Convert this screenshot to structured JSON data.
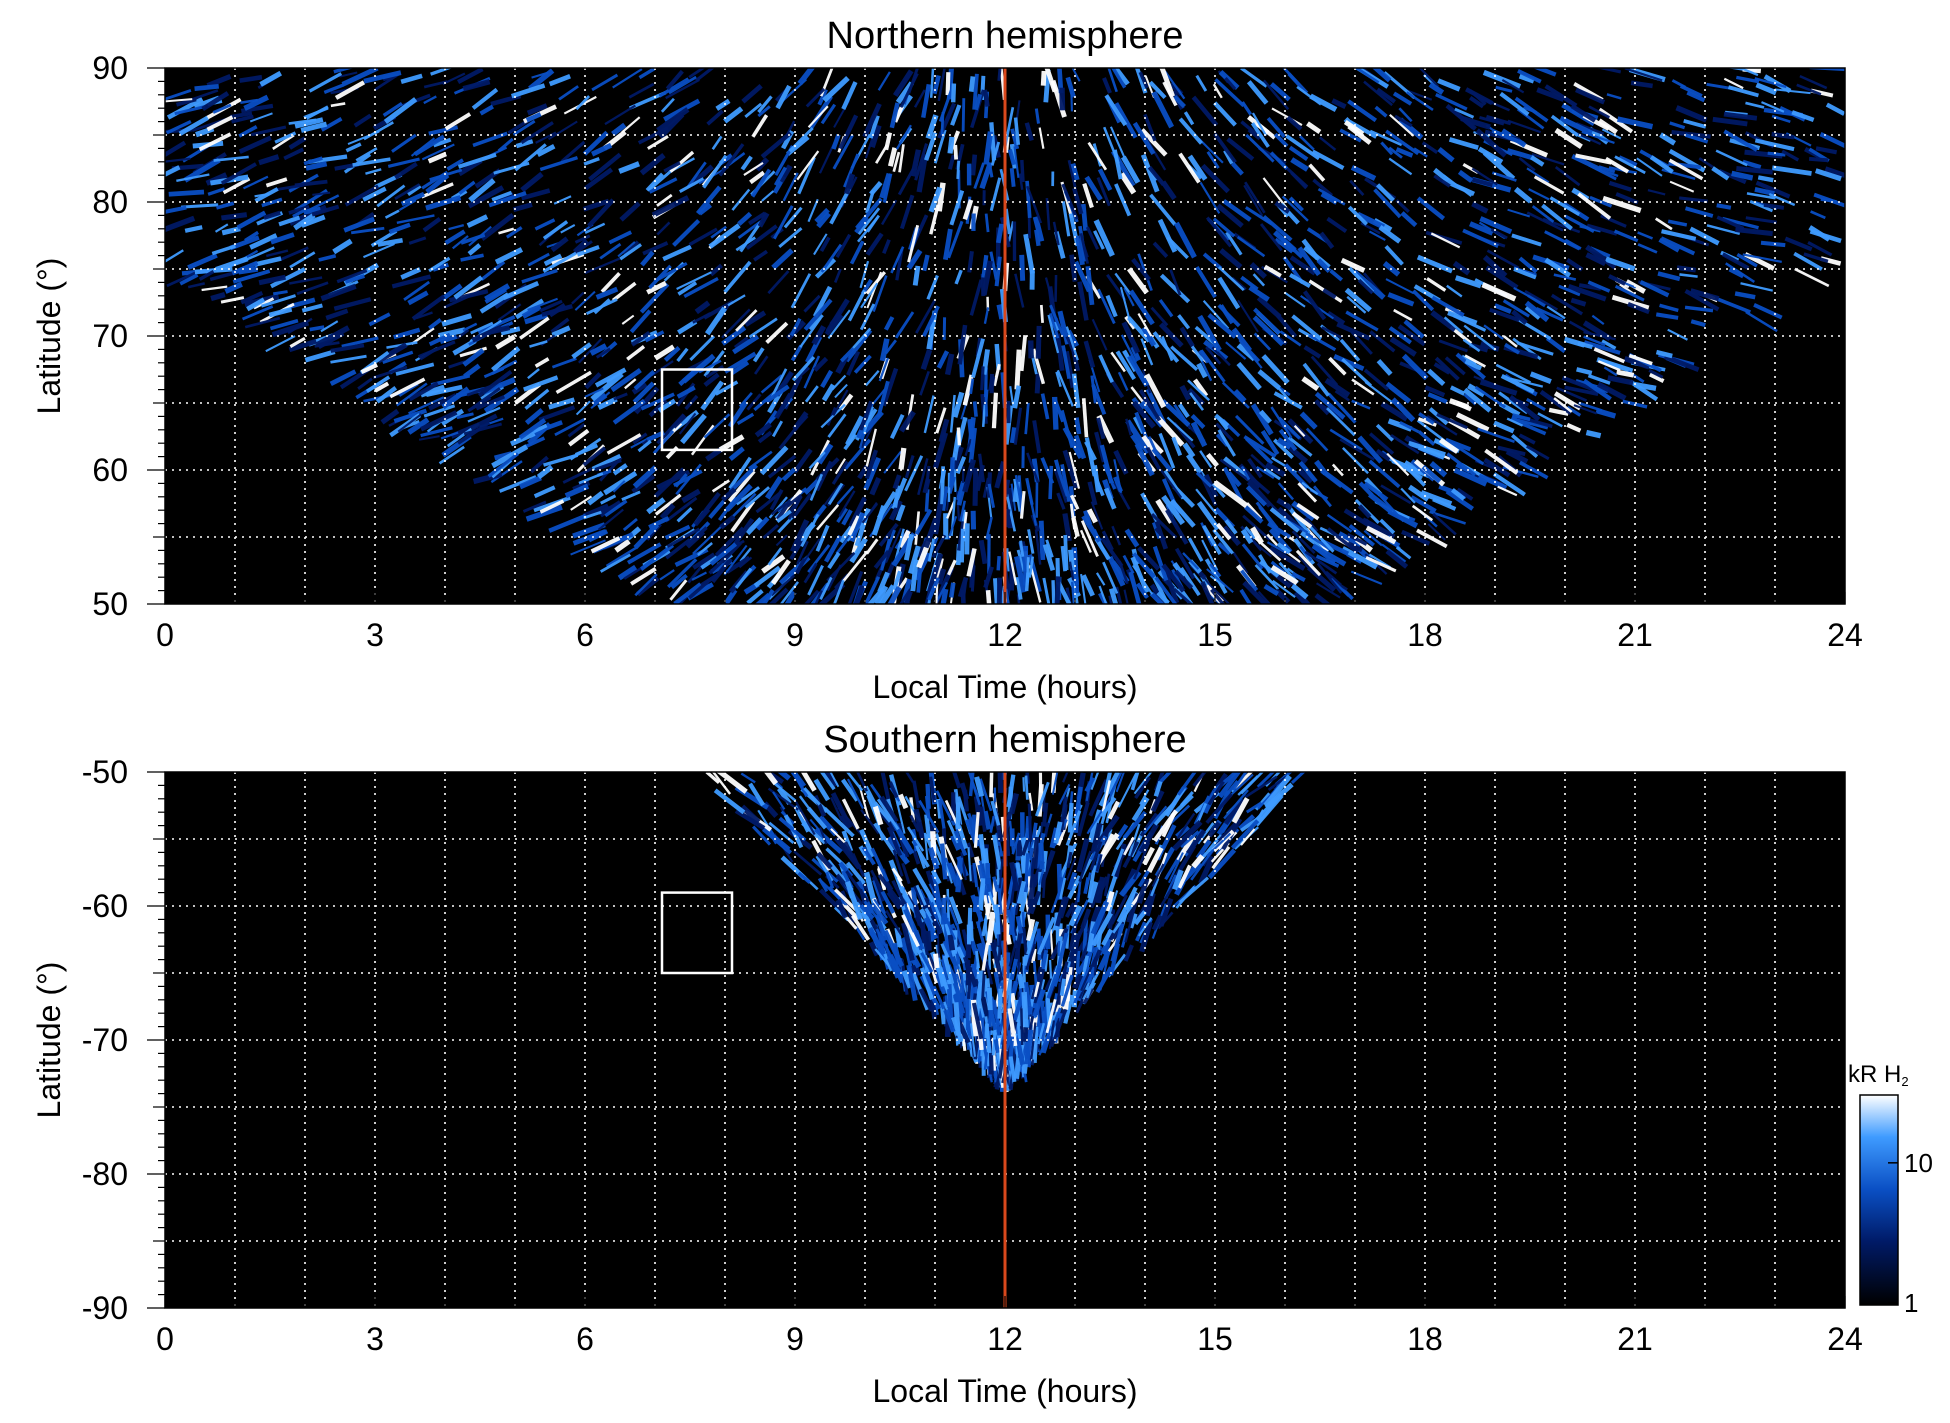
{
  "chart_data": [
    {
      "type": "heatmap",
      "title": "Northern hemisphere",
      "xlabel": "Local Time (hours)",
      "ylabel": "Latitude (°)",
      "xlim": [
        0,
        24
      ],
      "ylim": [
        50,
        90
      ],
      "xticks": [
        "0",
        "3",
        "6",
        "9",
        "12",
        "15",
        "18",
        "21",
        "24"
      ],
      "yticks": [
        "50",
        "60",
        "70",
        "80",
        "90"
      ],
      "grid": true,
      "noon_line_local_time": 12,
      "box": {
        "local_time": [
          7.1,
          8.1
        ],
        "latitude": [
          61.5,
          67.5
        ]
      }
    },
    {
      "type": "heatmap",
      "title": "Southern hemisphere",
      "xlabel": "Local Time (hours)",
      "ylabel": "Latitude (°)",
      "xlim": [
        0,
        24
      ],
      "ylim": [
        -90,
        -50
      ],
      "xticks": [
        "0",
        "3",
        "6",
        "9",
        "12",
        "15",
        "18",
        "21",
        "24"
      ],
      "yticks": [
        "-90",
        "-80",
        "-70",
        "-60",
        "-50"
      ],
      "grid": true,
      "noon_line_local_time": 12,
      "box": {
        "local_time": [
          7.1,
          8.1
        ],
        "latitude": [
          -65,
          -59
        ]
      }
    }
  ],
  "colorbar": {
    "label_main": "kR H",
    "label_sub": "2",
    "scale": "log",
    "range": [
      1,
      30
    ],
    "ticks": [
      "1",
      "10"
    ],
    "colors": [
      "#000000",
      "#001a66",
      "#0a4fc4",
      "#3f9bff",
      "#ffffff"
    ]
  },
  "colors": {
    "background": "#000000",
    "noon_line": "#d9481c",
    "grid": "#ffffff",
    "box": "#ffffff"
  }
}
